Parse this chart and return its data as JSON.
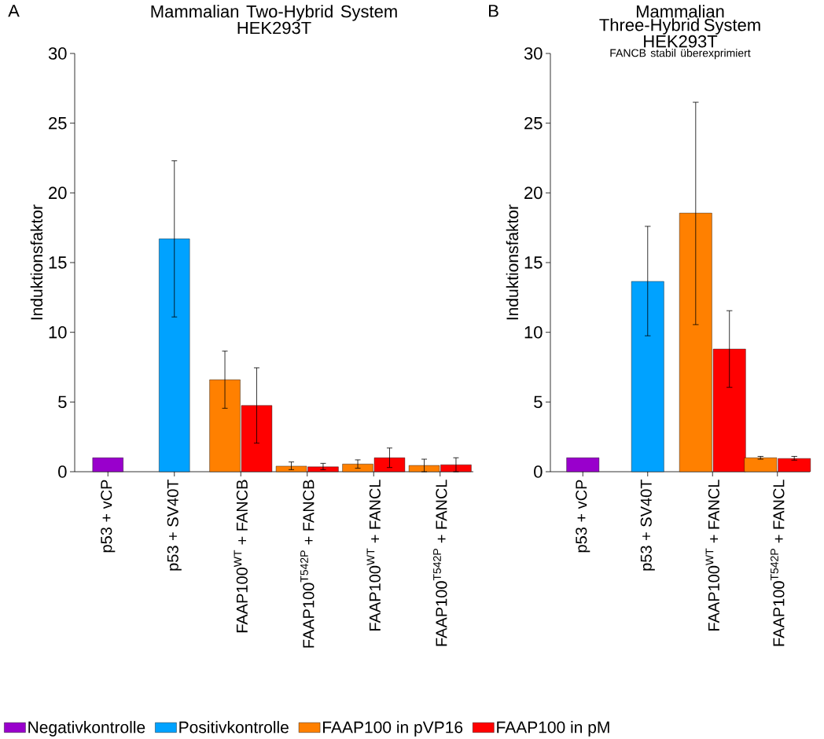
{
  "chart_data": [
    {
      "type": "bar",
      "title": "Mammalian Two-Hybrid System",
      "subtitle": "HEK293T",
      "annotations": [
        "A"
      ],
      "ylabel": "Induktionsfaktor",
      "categories": [
        "p53 + vCP",
        "p53 + SV40T",
        "FAAP100$^{WT}$ + FANCB",
        "FAAP100$^{T542P}$ + FANCB",
        "FAAP100$^{WT}$ + FANCL",
        "FAAP100$^{T542P}$ + FANCL"
      ],
      "series": [
        {
          "name": "Negativkontrolle",
          "color": "#9900cc",
          "values": [
            1.0,
            null,
            null,
            null,
            null,
            null
          ],
          "errors": [
            null,
            null,
            null,
            null,
            null,
            null
          ]
        },
        {
          "name": "Positivkontrolle",
          "color": "#00a2ff",
          "values": [
            null,
            16.7,
            null,
            null,
            null,
            null
          ],
          "errors": [
            null,
            [
              11.1,
              22.3
            ],
            null,
            null,
            null,
            null
          ]
        },
        {
          "name": "FAAP100 in pVP16",
          "color": "#ff8000",
          "values": [
            null,
            null,
            6.6,
            0.4,
            0.55,
            0.45
          ],
          "errors": [
            null,
            null,
            [
              4.55,
              8.65
            ],
            [
              0.15,
              0.7
            ],
            [
              0.25,
              0.85
            ],
            [
              0.0,
              0.9
            ]
          ]
        },
        {
          "name": "FAAP100 in pM",
          "color": "#ff0000",
          "values": [
            null,
            null,
            4.75,
            0.35,
            1.0,
            0.5
          ],
          "errors": [
            null,
            null,
            [
              2.05,
              7.45
            ],
            [
              0.15,
              0.6
            ],
            [
              0.3,
              1.7
            ],
            [
              0.0,
              1.0
            ]
          ]
        }
      ],
      "ylim": [
        0,
        30
      ],
      "yticks": [
        0,
        5,
        10,
        15,
        20,
        25,
        30
      ],
      "legend": "bottom"
    },
    {
      "type": "bar",
      "title": "Mammalian Three-Hybrid System",
      "subtitle": "HEK293T",
      "annotations": [
        "B",
        "FANCB stabil überexprimiert"
      ],
      "ylabel": "Induktionsfaktor",
      "categories": [
        "p53 + vCP",
        "p53 + SV40T",
        "FAAP100$^{WT}$ + FANCL",
        "FAAP100$^{T542P}$ + FANCL"
      ],
      "series": [
        {
          "color": "#9900cc",
          "values": [
            1.0,
            null,
            null,
            null
          ],
          "errors": [
            null,
            null,
            null,
            null
          ]
        },
        {
          "color": "#00a2ff",
          "values": [
            null,
            13.65,
            null,
            null
          ],
          "errors": [
            null,
            [
              9.75,
              17.6
            ],
            null,
            null
          ]
        },
        {
          "color": "#ff8000",
          "values": [
            null,
            null,
            18.55,
            1.0
          ],
          "errors": [
            null,
            null,
            [
              10.55,
              26.5
            ],
            [
              0.9,
              1.1
            ]
          ]
        },
        {
          "color": "#ff0000",
          "values": [
            null,
            null,
            8.8,
            0.95
          ],
          "errors": [
            null,
            null,
            [
              6.05,
              11.55
            ],
            [
              0.83,
              1.1
            ]
          ]
        }
      ],
      "ylim": [
        0,
        30
      ],
      "yticks": [
        0,
        5,
        10,
        15,
        20,
        25,
        30
      ]
    }
  ]
}
